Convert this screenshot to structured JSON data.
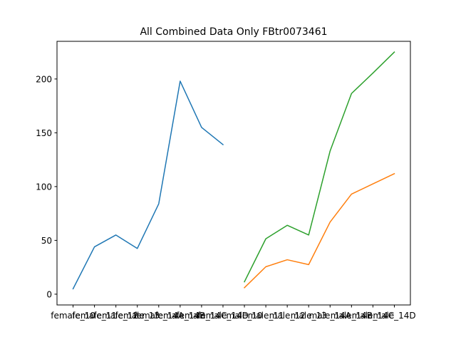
{
  "chart_data": {
    "type": "line",
    "title": "All Combined Data Only FBtr0073461",
    "xlabel": "",
    "ylabel": "",
    "categories": [
      "female_10",
      "female_11",
      "female_12",
      "female_13",
      "female_14A",
      "female_14B",
      "female_14C",
      "female_14D",
      "male_10",
      "male_11",
      "male_12",
      "male_13",
      "male_14A",
      "male_14B",
      "male_14C",
      "male_14D"
    ],
    "ylim": [
      -10,
      235
    ],
    "yticks": [
      0,
      50,
      100,
      150,
      200
    ],
    "series": [
      {
        "color": "#1f77b4",
        "x": [
          0,
          1,
          2,
          3,
          4,
          5,
          6,
          7
        ],
        "values": [
          5,
          44,
          55,
          42.5,
          84,
          198,
          155,
          139
        ]
      },
      {
        "color": "#ff7f0e",
        "x": [
          8,
          9,
          10,
          11,
          12,
          13,
          14,
          15
        ],
        "values": [
          6,
          25.5,
          32,
          27.5,
          67,
          93,
          102.5,
          112
        ]
      },
      {
        "color": "#2ca02c",
        "x": [
          8,
          9,
          10,
          11,
          12,
          13,
          14,
          15
        ],
        "values": [
          11.5,
          51.5,
          64,
          55,
          133,
          186.5,
          205.5,
          225
        ]
      }
    ],
    "grid": false,
    "legend": "none"
  }
}
